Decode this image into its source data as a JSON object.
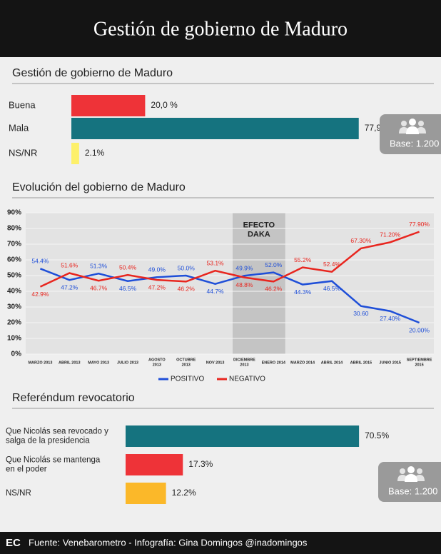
{
  "header": {
    "title": "Gestión de gobierno de Maduro"
  },
  "chart_data": [
    {
      "type": "hbar",
      "title": "Gestión de gobierno de Maduro",
      "categories": [
        "Buena",
        "Mala",
        "NS/NR"
      ],
      "values": [
        20.0,
        77.9,
        2.1
      ],
      "value_labels": [
        "20,0 %",
        "77,9 %",
        "2.1%"
      ],
      "colors": [
        "#ee3338",
        "#15737f",
        "#fdf06a"
      ],
      "note": "Base: 1.200"
    },
    {
      "type": "line",
      "title": "Evolución del gobierno de Maduro",
      "categories": [
        "MARZO 2013",
        "ABRIL 2013",
        "MAYO 2013",
        "JULIO 2013",
        "AGOSTO\n2013",
        "OCTUBRE\n2013",
        "NOV 2013",
        "DICIEMBRE\n2013",
        "ENERO 2014",
        "MARZO 2014",
        "ABRIL 2014",
        "ABRIL 2015",
        "JUNIO 2015",
        "SEPTIEMBRE\n2015"
      ],
      "series": [
        {
          "name": "POSITIVO",
          "color": "#1f4fd8",
          "values": [
            54.4,
            47.2,
            51.3,
            46.5,
            49.0,
            50.0,
            44.7,
            49.9,
            52.0,
            44.3,
            46.5,
            30.6,
            27.4,
            20.0
          ],
          "value_labels": [
            "54.4%",
            "47.2%",
            "51.3%",
            "46.5%",
            "49.0%",
            "50.0%",
            "44.7%",
            "49.9%",
            "52.0%",
            "44.3%",
            "46.5%",
            "30.60",
            "27.40%",
            "20.00%"
          ]
        },
        {
          "name": "NEGATIVO",
          "color": "#e8261f",
          "values": [
            42.9,
            51.6,
            46.7,
            50.4,
            47.2,
            46.2,
            53.1,
            48.8,
            46.2,
            55.2,
            52.4,
            67.3,
            71.2,
            77.9
          ],
          "value_labels": [
            "42.9%",
            "51.6%",
            "46.7%",
            "50.4%",
            "47.2%",
            "46.2%",
            "53.1%",
            "48.8%",
            "46.2%",
            "55.2%",
            "52.4%",
            "67.30%",
            "71.20%",
            "77.90%"
          ]
        }
      ],
      "ylim": [
        0,
        90
      ],
      "yticks": [
        {
          "value": 0,
          "label": "0%"
        },
        {
          "value": 10,
          "label": "10%"
        },
        {
          "value": 20,
          "label": "20%"
        },
        {
          "value": 30,
          "label": "30%"
        },
        {
          "value": 40,
          "label": "40%"
        },
        {
          "value": 50,
          "label": "50%"
        },
        {
          "value": 60,
          "label": "60%"
        },
        {
          "value": 70,
          "label": "70%"
        },
        {
          "value": 80,
          "label": "80%"
        },
        {
          "value": 90,
          "label": "90%"
        }
      ],
      "grid": true,
      "annotation": "EFECTO\nDAKA"
    },
    {
      "type": "hbar",
      "title": "Referéndum revocatorio",
      "categories": [
        "Que Nicolás sea revocado y\nsalga de la presidencia",
        "Que Nicolás se mantenga\nen el poder",
        "NS/NR"
      ],
      "values": [
        70.5,
        17.3,
        12.2
      ],
      "value_labels": [
        "70.5%",
        "17.3%",
        "12.2%"
      ],
      "colors": [
        "#15737f",
        "#ee3338",
        "#fbb829"
      ],
      "note": "Base: 1.200"
    }
  ],
  "footer": {
    "logo": "EC",
    "source": "Fuente: Venebarometro - Infografía: Gina Domingos @inadomingos"
  }
}
